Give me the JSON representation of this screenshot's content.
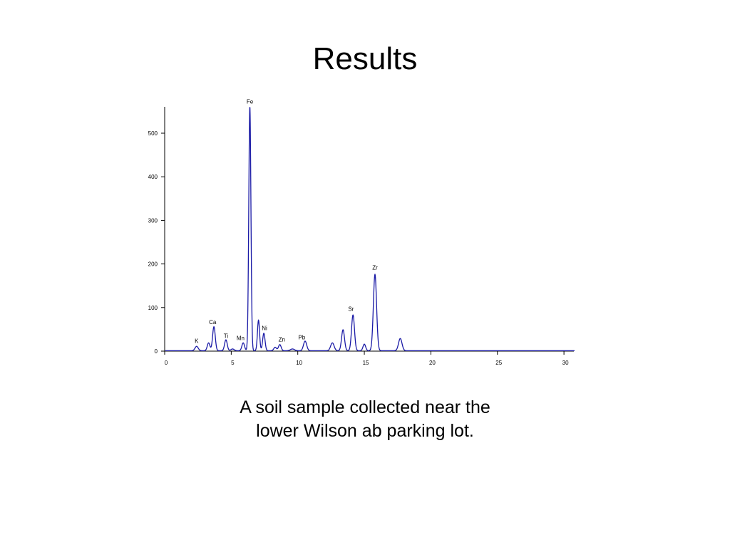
{
  "slide": {
    "title": "Results",
    "caption_lines": [
      "A soil sample collected near the",
      "lower Wilson ab parking lot."
    ]
  },
  "colors": {
    "spectrum": "#1a1aa6",
    "axis": "#000000"
  },
  "chart_data": {
    "type": "line",
    "title": "",
    "xlabel": "",
    "ylabel": "",
    "xlim": [
      0,
      30.8
    ],
    "ylim": [
      0,
      560
    ],
    "x_ticks": [
      0,
      5,
      10,
      15,
      20,
      25,
      30
    ],
    "y_ticks": [
      0,
      100,
      200,
      300,
      400,
      500
    ],
    "grid": false,
    "legend": "none",
    "series": [
      {
        "peaks": [
          {
            "x": 2.4,
            "y": 10,
            "w": 0.12
          },
          {
            "x": 3.3,
            "y": 18,
            "w": 0.1
          },
          {
            "x": 3.7,
            "y": 55,
            "w": 0.1
          },
          {
            "x": 4.6,
            "y": 25,
            "w": 0.1
          },
          {
            "x": 5.1,
            "y": 4,
            "w": 0.12
          },
          {
            "x": 5.9,
            "y": 18,
            "w": 0.1
          },
          {
            "x": 6.4,
            "y": 560,
            "w": 0.08
          },
          {
            "x": 7.05,
            "y": 70,
            "w": 0.08
          },
          {
            "x": 7.45,
            "y": 40,
            "w": 0.09
          },
          {
            "x": 8.3,
            "y": 8,
            "w": 0.1
          },
          {
            "x": 8.65,
            "y": 14,
            "w": 0.1
          },
          {
            "x": 9.6,
            "y": 4,
            "w": 0.15
          },
          {
            "x": 10.55,
            "y": 22,
            "w": 0.12
          },
          {
            "x": 12.6,
            "y": 18,
            "w": 0.13
          },
          {
            "x": 13.4,
            "y": 48,
            "w": 0.11
          },
          {
            "x": 14.15,
            "y": 82,
            "w": 0.11
          },
          {
            "x": 15.0,
            "y": 15,
            "w": 0.1
          },
          {
            "x": 15.8,
            "y": 175,
            "w": 0.12
          },
          {
            "x": 17.7,
            "y": 28,
            "w": 0.13
          }
        ]
      }
    ],
    "annotations": [
      {
        "text": "Fe",
        "x": 6.4,
        "y": 568
      },
      {
        "text": "Zr",
        "x": 15.8,
        "y": 187
      },
      {
        "text": "Sr",
        "x": 14.0,
        "y": 92
      },
      {
        "text": "Ca",
        "x": 3.6,
        "y": 62
      },
      {
        "text": "Ni",
        "x": 7.5,
        "y": 48
      },
      {
        "text": "Ti",
        "x": 4.6,
        "y": 30
      },
      {
        "text": "Mn",
        "x": 5.7,
        "y": 25
      },
      {
        "text": "Pb",
        "x": 10.3,
        "y": 27
      },
      {
        "text": "Zn",
        "x": 8.8,
        "y": 22
      },
      {
        "text": "K",
        "x": 2.4,
        "y": 19
      }
    ]
  }
}
